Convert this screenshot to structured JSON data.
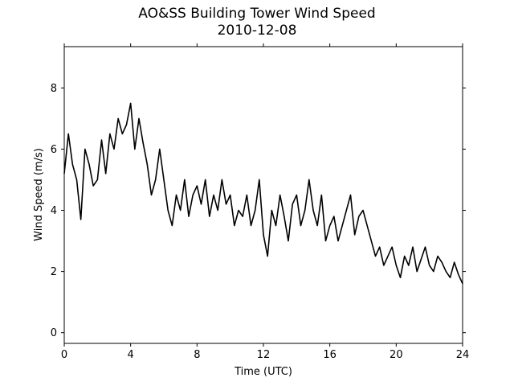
{
  "chart_data": {
    "type": "line",
    "title": "AO&SS Building Tower Wind Speed",
    "subtitle": "2010-12-08",
    "xlabel": "Time (UTC)",
    "ylabel": "Wind Speed (m/s)",
    "xlim": [
      0,
      24
    ],
    "ylim": [
      -0.35,
      9.35
    ],
    "xticks": [
      0,
      4,
      8,
      12,
      16,
      20,
      24
    ],
    "yticks": [
      0,
      2,
      4,
      6,
      8
    ],
    "grid": false,
    "legend": "none",
    "line_color": "#000000",
    "series": [
      {
        "x": [
          0.0,
          0.25,
          0.5,
          0.75,
          1.0,
          1.25,
          1.5,
          1.75,
          2.0,
          2.25,
          2.5,
          2.75,
          3.0,
          3.25,
          3.5,
          3.75,
          4.0,
          4.25,
          4.5,
          4.75,
          5.0,
          5.25,
          5.5,
          5.75,
          6.0,
          6.25,
          6.5,
          6.75,
          7.0,
          7.25,
          7.5,
          7.75,
          8.0,
          8.25,
          8.5,
          8.75,
          9.0,
          9.25,
          9.5,
          9.75,
          10.0,
          10.25,
          10.5,
          10.75,
          11.0,
          11.25,
          11.5,
          11.75,
          12.0,
          12.25,
          12.5,
          12.75,
          13.0,
          13.25,
          13.5,
          13.75,
          14.0,
          14.25,
          14.5,
          14.75,
          15.0,
          15.25,
          15.5,
          15.75,
          16.0,
          16.25,
          16.5,
          16.75,
          17.0,
          17.25,
          17.5,
          17.75,
          18.0,
          18.25,
          18.5,
          18.75,
          19.0,
          19.25,
          19.5,
          19.75,
          20.0,
          20.25,
          20.5,
          20.75,
          21.0,
          21.25,
          21.5,
          21.75,
          22.0,
          22.25,
          22.5,
          22.75,
          23.0,
          23.25,
          23.5,
          23.75,
          24.0
        ],
        "values": [
          5.2,
          6.5,
          5.5,
          5.0,
          3.7,
          6.0,
          5.5,
          4.8,
          5.0,
          6.3,
          5.2,
          6.5,
          6.0,
          7.0,
          6.5,
          6.8,
          7.5,
          6.0,
          7.0,
          6.2,
          5.5,
          4.5,
          5.0,
          6.0,
          5.0,
          4.0,
          3.5,
          4.5,
          4.0,
          5.0,
          3.8,
          4.5,
          4.8,
          4.2,
          5.0,
          3.8,
          4.5,
          4.0,
          5.0,
          4.2,
          4.5,
          3.5,
          4.0,
          3.8,
          4.5,
          3.5,
          4.0,
          5.0,
          3.2,
          2.5,
          4.0,
          3.5,
          4.5,
          3.8,
          3.0,
          4.2,
          4.5,
          3.5,
          4.0,
          5.0,
          4.0,
          3.5,
          4.5,
          3.0,
          3.5,
          3.8,
          3.0,
          3.5,
          4.0,
          4.5,
          3.2,
          3.8,
          4.0,
          3.5,
          3.0,
          2.5,
          2.8,
          2.2,
          2.5,
          2.8,
          2.2,
          1.8,
          2.5,
          2.2,
          2.8,
          2.0,
          2.4,
          2.8,
          2.2,
          2.0,
          2.5,
          2.3,
          2.0,
          1.8,
          2.3,
          1.9,
          1.6
        ]
      }
    ]
  }
}
